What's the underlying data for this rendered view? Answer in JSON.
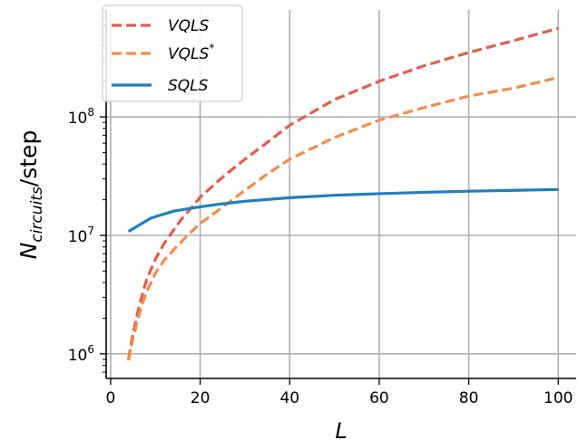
{
  "chart_data": {
    "type": "line",
    "xlabel": "L",
    "ylabel": {
      "main": "N",
      "sub": "circuits",
      "suffix": "/step"
    },
    "xlim": [
      -1,
      104
    ],
    "ylim": [
      620000,
      800000000
    ],
    "yscale": "log",
    "grid": true,
    "legend_placement": "top-left",
    "x_ticks": [
      {
        "value": 0,
        "label": "0"
      },
      {
        "value": 20,
        "label": "20"
      },
      {
        "value": 40,
        "label": "40"
      },
      {
        "value": 60,
        "label": "60"
      },
      {
        "value": 80,
        "label": "80"
      },
      {
        "value": 100,
        "label": "100"
      }
    ],
    "y_ticks": [
      {
        "value": 1000000,
        "base": "10",
        "exp": "6"
      },
      {
        "value": 10000000,
        "base": "10",
        "exp": "7"
      },
      {
        "value": 100000000,
        "base": "10",
        "exp": "8"
      }
    ],
    "series": [
      {
        "name": "VQLS",
        "name_sup": "",
        "color": "#e05f4e",
        "dash": "dashed",
        "x": [
          4,
          5,
          6,
          7,
          8,
          10,
          12,
          14,
          16,
          18,
          20,
          25,
          30,
          35,
          40,
          50,
          60,
          70,
          80,
          90,
          100
        ],
        "y": [
          900000,
          1500000,
          2200000,
          3100000,
          4200000,
          6300000,
          8600000,
          11000000,
          14000000,
          17000000,
          21000000,
          31000000,
          44000000,
          61000000,
          85000000,
          140000000,
          200000000,
          270000000,
          350000000,
          440000000,
          560000000
        ]
      },
      {
        "name": "VQLS",
        "name_sup": "*",
        "color": "#f28e4b",
        "dash": "dashed",
        "x": [
          4,
          5,
          6,
          7,
          8,
          10,
          12,
          14,
          16,
          18,
          20,
          25,
          30,
          35,
          40,
          50,
          60,
          70,
          80,
          90,
          100
        ],
        "y": [
          880000,
          1350000,
          1900000,
          2600000,
          3300000,
          4800000,
          6200000,
          7500000,
          9000000,
          10700000,
          12600000,
          17300000,
          24000000,
          33000000,
          44000000,
          67000000,
          94000000,
          120000000,
          150000000,
          175000000,
          215000000
        ]
      },
      {
        "name": "SQLS",
        "name_sup": "",
        "color": "#1f7fbf",
        "dash": "solid",
        "x": [
          4,
          9,
          14,
          19,
          24,
          30,
          40,
          50,
          60,
          70,
          80,
          90,
          100
        ],
        "y": [
          10800000,
          14000000,
          16000000,
          17200000,
          18300000,
          19400000,
          20800000,
          21800000,
          22500000,
          23100000,
          23600000,
          24000000,
          24400000
        ]
      }
    ]
  }
}
